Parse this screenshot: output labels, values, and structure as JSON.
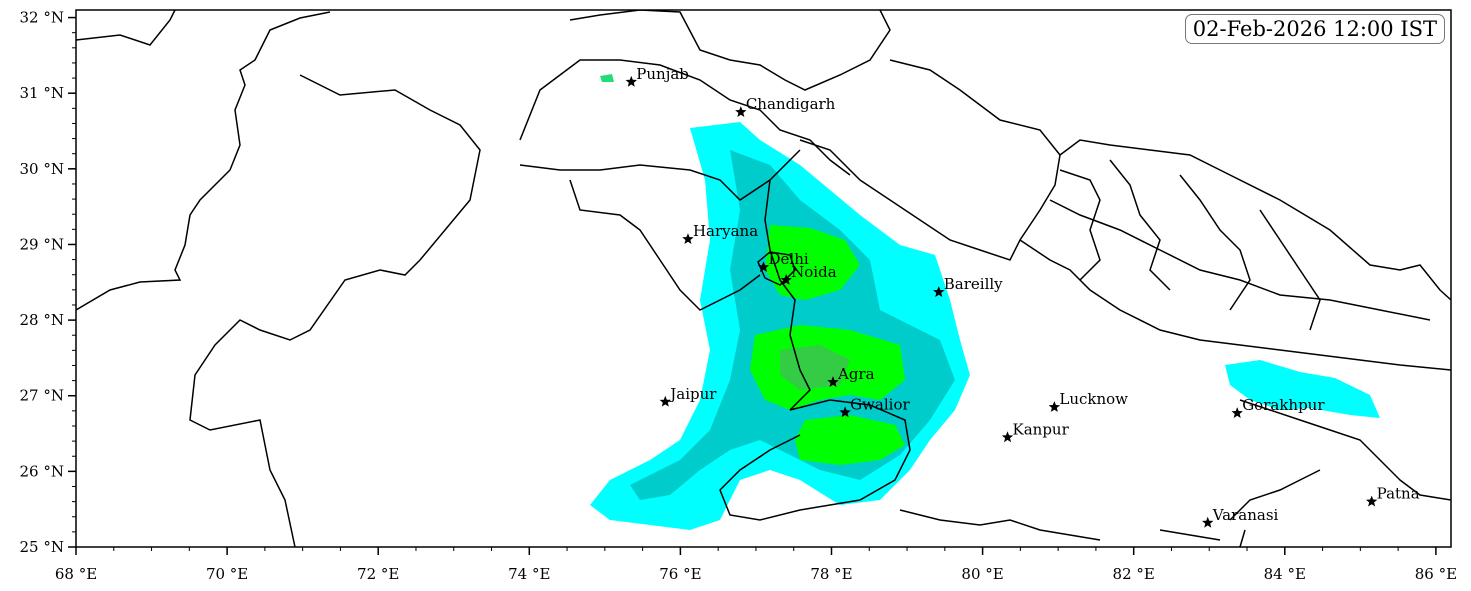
{
  "timestamp": "02-Feb-2026 12:00 IST",
  "axes": {
    "x_range": [
      68,
      86.2
    ],
    "y_range": [
      25,
      32.1
    ],
    "x_ticks": [
      {
        "value": 68,
        "label": "68 °E"
      },
      {
        "value": 70,
        "label": "70 °E"
      },
      {
        "value": 72,
        "label": "72 °E"
      },
      {
        "value": 74,
        "label": "74 °E"
      },
      {
        "value": 76,
        "label": "76 °E"
      },
      {
        "value": 78,
        "label": "78 °E"
      },
      {
        "value": 80,
        "label": "80 °E"
      },
      {
        "value": 82,
        "label": "82 °E"
      },
      {
        "value": 84,
        "label": "84 °E"
      },
      {
        "value": 86,
        "label": "86 °E"
      }
    ],
    "y_ticks": [
      {
        "value": 25,
        "label": "25 °N"
      },
      {
        "value": 26,
        "label": "26 °N"
      },
      {
        "value": 27,
        "label": "27 °N"
      },
      {
        "value": 28,
        "label": "28 °N"
      },
      {
        "value": 29,
        "label": "29 °N"
      },
      {
        "value": 30,
        "label": "30 °N"
      },
      {
        "value": 31,
        "label": "31 °N"
      },
      {
        "value": 32,
        "label": "32 °N"
      }
    ]
  },
  "cities": [
    {
      "name": "Punjab",
      "lon": 75.35,
      "lat": 31.15
    },
    {
      "name": "Chandigarh",
      "lon": 76.8,
      "lat": 30.75
    },
    {
      "name": "Haryana",
      "lon": 76.1,
      "lat": 29.07
    },
    {
      "name": "Delhi",
      "lon": 77.1,
      "lat": 28.7
    },
    {
      "name": "Noida",
      "lon": 77.4,
      "lat": 28.53
    },
    {
      "name": "Bareilly",
      "lon": 79.42,
      "lat": 28.37
    },
    {
      "name": "Jaipur",
      "lon": 75.8,
      "lat": 26.92
    },
    {
      "name": "Agra",
      "lon": 78.02,
      "lat": 27.18
    },
    {
      "name": "Gwalior",
      "lon": 78.18,
      "lat": 26.78
    },
    {
      "name": "Lucknow",
      "lon": 80.95,
      "lat": 26.85
    },
    {
      "name": "Kanpur",
      "lon": 80.33,
      "lat": 26.45
    },
    {
      "name": "Gorakhpur",
      "lon": 83.37,
      "lat": 26.77
    },
    {
      "name": "Varanasi",
      "lon": 82.98,
      "lat": 25.32
    },
    {
      "name": "Patna",
      "lon": 85.15,
      "lat": 25.6
    }
  ],
  "colors": {
    "light": "#00ffff",
    "medium": "#00cfcf",
    "heavy": "#00ff00",
    "very_heavy": "#22dd55",
    "marker": "#000000"
  }
}
